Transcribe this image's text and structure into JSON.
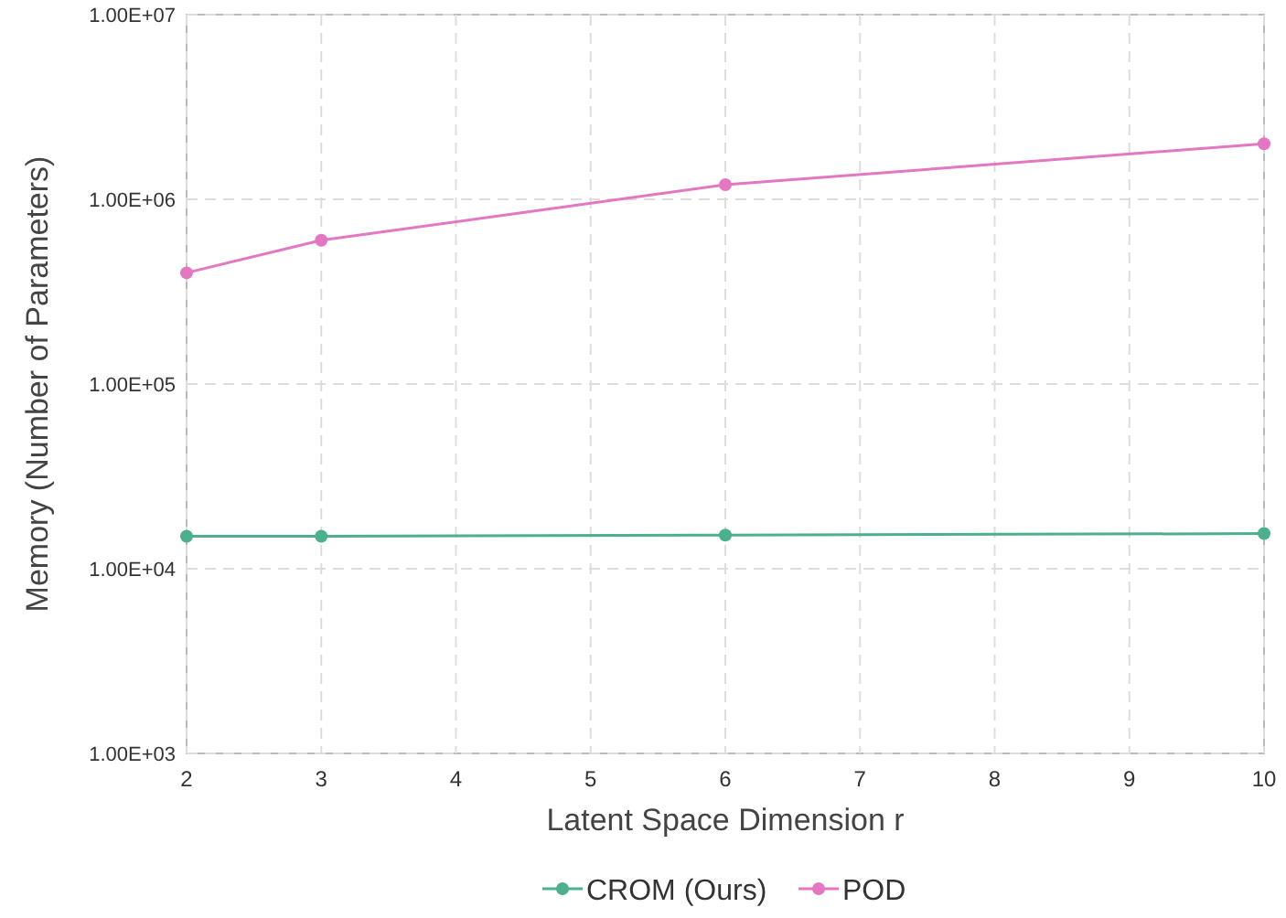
{
  "chart_data": {
    "type": "line",
    "xlabel": "Latent Space Dimension r",
    "ylabel": "Memory (Number of Parameters)",
    "log": "y",
    "grid": true,
    "legend": "bottom",
    "marker": "circle",
    "line_style": "solid",
    "xlim": [
      2,
      10
    ],
    "xticks": [
      2,
      3,
      4,
      5,
      6,
      7,
      8,
      9,
      10
    ],
    "ylim": [
      1000,
      10000000
    ],
    "yticks": [
      {
        "value": 1000,
        "label": "1.00E+03"
      },
      {
        "value": 10000,
        "label": "1.00E+04"
      },
      {
        "value": 100000,
        "label": "1.00E+05"
      },
      {
        "value": 1000000,
        "label": "1.00E+06"
      },
      {
        "value": 10000000,
        "label": "1.00E+07"
      }
    ],
    "series": [
      {
        "name": "CROM (Ours)",
        "color": "#4caf8e",
        "x": [
          2,
          3,
          6,
          10
        ],
        "values": [
          15000,
          15000,
          15200,
          15500
        ]
      },
      {
        "name": "POD",
        "color": "#e377c2",
        "x": [
          2,
          3,
          6,
          10
        ],
        "values": [
          400000,
          600000,
          1200000,
          2000000
        ]
      }
    ]
  }
}
